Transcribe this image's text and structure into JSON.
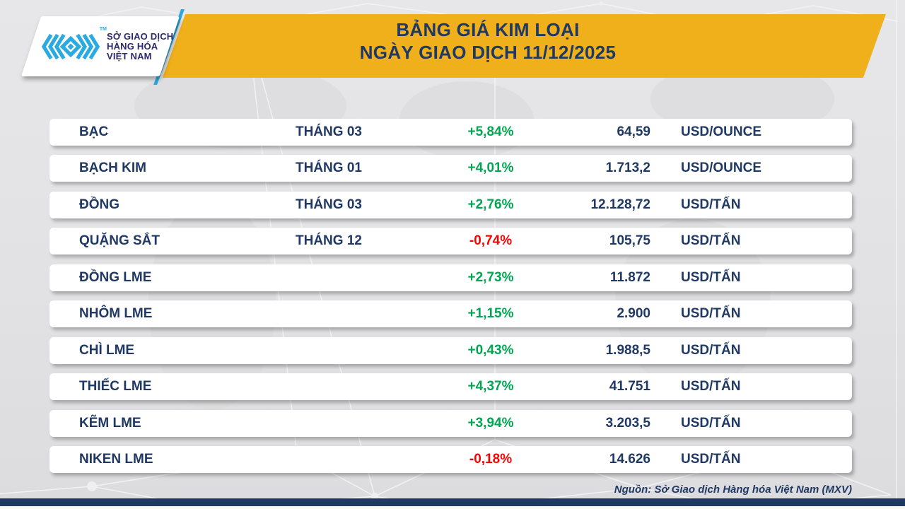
{
  "header": {
    "logo": {
      "line1": "SỞ GIAO DỊCH",
      "line2": "HÀNG HÓA",
      "line3": "VIỆT NAM",
      "tm": "TM"
    },
    "title_line1": "BẢNG GIÁ KIM LOẠI",
    "title_line2": "NGÀY GIAO DỊCH 11/12/2025"
  },
  "table": {
    "rows": [
      {
        "name": "BẠC",
        "month": "THÁNG 03",
        "change": "+5,84%",
        "dir": "up",
        "price": "64,59",
        "unit": "USD/OUNCE"
      },
      {
        "name": "BẠCH KIM",
        "month": "THÁNG 01",
        "change": "+4,01%",
        "dir": "up",
        "price": "1.713,2",
        "unit": "USD/OUNCE"
      },
      {
        "name": "ĐỒNG",
        "month": "THÁNG 03",
        "change": "+2,76%",
        "dir": "up",
        "price": "12.128,72",
        "unit": "USD/TẤN"
      },
      {
        "name": "QUẶNG SẮT",
        "month": "THÁNG 12",
        "change": "-0,74%",
        "dir": "down",
        "price": "105,75",
        "unit": "USD/TẤN"
      },
      {
        "name": "ĐỒNG LME",
        "month": "",
        "change": "+2,73%",
        "dir": "up",
        "price": "11.872",
        "unit": "USD/TẤN"
      },
      {
        "name": "NHÔM LME",
        "month": "",
        "change": "+1,15%",
        "dir": "up",
        "price": "2.900",
        "unit": "USD/TẤN"
      },
      {
        "name": "CHÌ LME",
        "month": "",
        "change": "+0,43%",
        "dir": "up",
        "price": "1.988,5",
        "unit": "USD/TẤN"
      },
      {
        "name": "THIẾC LME",
        "month": "",
        "change": "+4,37%",
        "dir": "up",
        "price": "41.751",
        "unit": "USD/TẤN"
      },
      {
        "name": "KẼM LME",
        "month": "",
        "change": "+3,94%",
        "dir": "up",
        "price": "3.203,5",
        "unit": "USD/TẤN"
      },
      {
        "name": "NIKEN LME",
        "month": "",
        "change": "-0,18%",
        "dir": "down",
        "price": "14.626",
        "unit": "USD/TẤN"
      }
    ]
  },
  "footer": {
    "source": "Nguồn: Sở Giao dịch Hàng hóa Việt Nam (MXV)"
  },
  "colors": {
    "banner_yellow": "#f0b01b",
    "navy": "#1f3864",
    "green_up": "#00a651",
    "red_down": "#fe0000",
    "logo_cyan": "#29abe2",
    "logo_text": "#2d2a6e",
    "background": "#e2e2e4"
  },
  "chart_data": {
    "type": "table",
    "title": "BẢNG GIÁ KIM LOẠI",
    "subtitle": "NGÀY GIAO DỊCH 11/12/2025",
    "rows": [
      {
        "name": "BẠC",
        "month": "THÁNG 03",
        "change_pct": 5.84,
        "price": 64.59,
        "unit": "USD/OUNCE"
      },
      {
        "name": "BẠCH KIM",
        "month": "THÁNG 01",
        "change_pct": 4.01,
        "price": 1713.2,
        "unit": "USD/OUNCE"
      },
      {
        "name": "ĐỒNG",
        "month": "THÁNG 03",
        "change_pct": 2.76,
        "price": 12128.72,
        "unit": "USD/TẤN"
      },
      {
        "name": "QUẶNG SẮT",
        "month": "THÁNG 12",
        "change_pct": -0.74,
        "price": 105.75,
        "unit": "USD/TẤN"
      },
      {
        "name": "ĐỒNG LME",
        "month": "",
        "change_pct": 2.73,
        "price": 11872,
        "unit": "USD/TẤN"
      },
      {
        "name": "NHÔM LME",
        "month": "",
        "change_pct": 1.15,
        "price": 2900,
        "unit": "USD/TẤN"
      },
      {
        "name": "CHÌ LME",
        "month": "",
        "change_pct": 0.43,
        "price": 1988.5,
        "unit": "USD/TẤN"
      },
      {
        "name": "THIẾC LME",
        "month": "",
        "change_pct": 4.37,
        "price": 41751,
        "unit": "USD/TẤN"
      },
      {
        "name": "KẼM LME",
        "month": "",
        "change_pct": 3.94,
        "price": 3203.5,
        "unit": "USD/TẤN"
      },
      {
        "name": "NIKEN LME",
        "month": "",
        "change_pct": -0.18,
        "price": 14626,
        "unit": "USD/TẤN"
      }
    ],
    "source": "Nguồn: Sở Giao dịch Hàng hóa Việt Nam (MXV)"
  }
}
